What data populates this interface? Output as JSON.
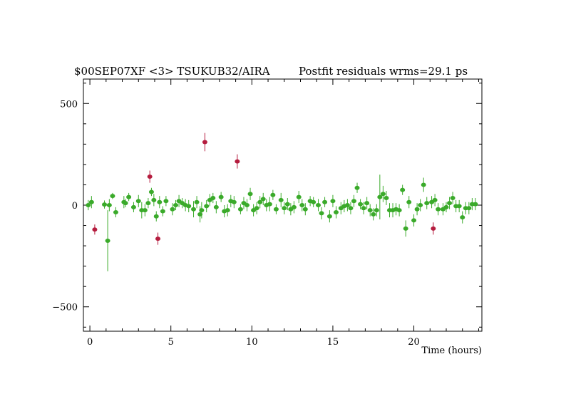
{
  "chart_data": {
    "type": "scatter",
    "title_left": "$00SEP07XF <3> TSUKUB32/AIRA",
    "title_right": "Postfit residuals wrms=29.1  ps",
    "xlabel": "Time (hours)",
    "ylabel": "",
    "xlim": [
      -0.4,
      24.2
    ],
    "ylim": [
      -620,
      620
    ],
    "x_ticks": [
      0,
      5,
      10,
      15,
      20
    ],
    "y_ticks": [
      500,
      0,
      -500
    ],
    "x_tick_labels": [
      "0",
      "5",
      "10",
      "15",
      "20"
    ],
    "y_tick_labels": [
      "500",
      "0",
      "−500"
    ],
    "grid": false,
    "colors": {
      "used": "#3aaa2a",
      "outlier": "#b51c3e"
    },
    "series": [
      {
        "points": [
          [
            -0.1,
            0,
            25
          ],
          [
            0.1,
            15,
            30
          ],
          [
            0.9,
            3,
            20
          ],
          [
            1.1,
            -175,
            150
          ],
          [
            1.2,
            0,
            30
          ],
          [
            1.4,
            45,
            15
          ],
          [
            1.6,
            -35,
            25
          ],
          [
            2.1,
            15,
            30
          ],
          [
            2.2,
            10,
            20
          ],
          [
            2.4,
            40,
            20
          ],
          [
            2.7,
            -10,
            25
          ],
          [
            3.0,
            20,
            30
          ],
          [
            3.2,
            -25,
            40
          ],
          [
            3.4,
            -25,
            30
          ],
          [
            3.6,
            10,
            25
          ],
          [
            3.8,
            65,
            20
          ],
          [
            3.95,
            25,
            30
          ],
          [
            4.1,
            -55,
            25
          ],
          [
            4.3,
            15,
            30
          ],
          [
            4.5,
            -30,
            25
          ],
          [
            4.7,
            20,
            25
          ],
          [
            5.1,
            -20,
            30
          ],
          [
            5.3,
            0,
            25
          ],
          [
            5.5,
            20,
            30
          ],
          [
            5.7,
            10,
            25
          ],
          [
            5.9,
            0,
            30
          ],
          [
            6.1,
            -5,
            30
          ],
          [
            6.4,
            -20,
            40
          ],
          [
            6.6,
            15,
            30
          ],
          [
            6.8,
            -45,
            40
          ],
          [
            6.9,
            -25,
            40
          ],
          [
            7.2,
            -5,
            30
          ],
          [
            7.4,
            25,
            30
          ],
          [
            7.6,
            35,
            25
          ],
          [
            7.8,
            -10,
            30
          ],
          [
            8.1,
            40,
            25
          ],
          [
            8.3,
            -30,
            30
          ],
          [
            8.5,
            -25,
            30
          ],
          [
            8.7,
            20,
            30
          ],
          [
            8.9,
            15,
            30
          ],
          [
            9.3,
            -20,
            25
          ],
          [
            9.5,
            10,
            30
          ],
          [
            9.7,
            0,
            30
          ],
          [
            9.9,
            55,
            30
          ],
          [
            10.1,
            -25,
            30
          ],
          [
            10.3,
            -15,
            30
          ],
          [
            10.5,
            15,
            30
          ],
          [
            10.7,
            30,
            30
          ],
          [
            10.9,
            0,
            30
          ],
          [
            11.1,
            5,
            35
          ],
          [
            11.3,
            50,
            25
          ],
          [
            11.5,
            -20,
            25
          ],
          [
            11.8,
            25,
            35
          ],
          [
            12.0,
            -15,
            30
          ],
          [
            12.2,
            5,
            30
          ],
          [
            12.4,
            -20,
            30
          ],
          [
            12.6,
            -10,
            30
          ],
          [
            12.9,
            40,
            30
          ],
          [
            13.1,
            0,
            30
          ],
          [
            13.3,
            -20,
            30
          ],
          [
            13.6,
            20,
            25
          ],
          [
            13.8,
            15,
            25
          ],
          [
            14.1,
            0,
            30
          ],
          [
            14.3,
            -40,
            30
          ],
          [
            14.5,
            15,
            25
          ],
          [
            14.8,
            -55,
            30
          ],
          [
            15.0,
            20,
            30
          ],
          [
            15.2,
            -35,
            30
          ],
          [
            15.5,
            -15,
            30
          ],
          [
            15.7,
            -5,
            30
          ],
          [
            15.9,
            0,
            30
          ],
          [
            16.1,
            -15,
            30
          ],
          [
            16.3,
            20,
            30
          ],
          [
            16.5,
            85,
            25
          ],
          [
            16.7,
            5,
            25
          ],
          [
            16.9,
            -15,
            30
          ],
          [
            17.1,
            10,
            30
          ],
          [
            17.3,
            -25,
            30
          ],
          [
            17.5,
            -45,
            30
          ],
          [
            17.7,
            -25,
            30
          ],
          [
            17.9,
            40,
            110
          ],
          [
            18.1,
            55,
            40
          ],
          [
            18.3,
            35,
            35
          ],
          [
            18.5,
            -25,
            35
          ],
          [
            18.7,
            -25,
            35
          ],
          [
            18.9,
            -20,
            30
          ],
          [
            19.1,
            -25,
            30
          ],
          [
            19.3,
            75,
            25
          ],
          [
            19.5,
            -115,
            40
          ],
          [
            19.7,
            15,
            30
          ],
          [
            20.0,
            -75,
            30
          ],
          [
            20.2,
            -20,
            30
          ],
          [
            20.4,
            0,
            30
          ],
          [
            20.6,
            100,
            35
          ],
          [
            20.8,
            10,
            30
          ],
          [
            21.1,
            15,
            30
          ],
          [
            21.3,
            25,
            30
          ],
          [
            21.5,
            -20,
            30
          ],
          [
            21.8,
            -20,
            30
          ],
          [
            22.0,
            -10,
            25
          ],
          [
            22.2,
            10,
            30
          ],
          [
            22.4,
            35,
            30
          ],
          [
            22.6,
            -5,
            30
          ],
          [
            22.8,
            -5,
            30
          ],
          [
            23.0,
            -60,
            30
          ],
          [
            23.2,
            -15,
            30
          ],
          [
            23.4,
            -15,
            30
          ],
          [
            23.6,
            5,
            30
          ],
          [
            23.8,
            5,
            30
          ]
        ]
      },
      {
        "points": [
          [
            0.3,
            -120,
            25
          ],
          [
            3.7,
            140,
            30
          ],
          [
            4.2,
            -165,
            30
          ],
          [
            7.1,
            310,
            45
          ],
          [
            9.1,
            215,
            35
          ],
          [
            21.2,
            -115,
            30
          ]
        ]
      }
    ]
  }
}
